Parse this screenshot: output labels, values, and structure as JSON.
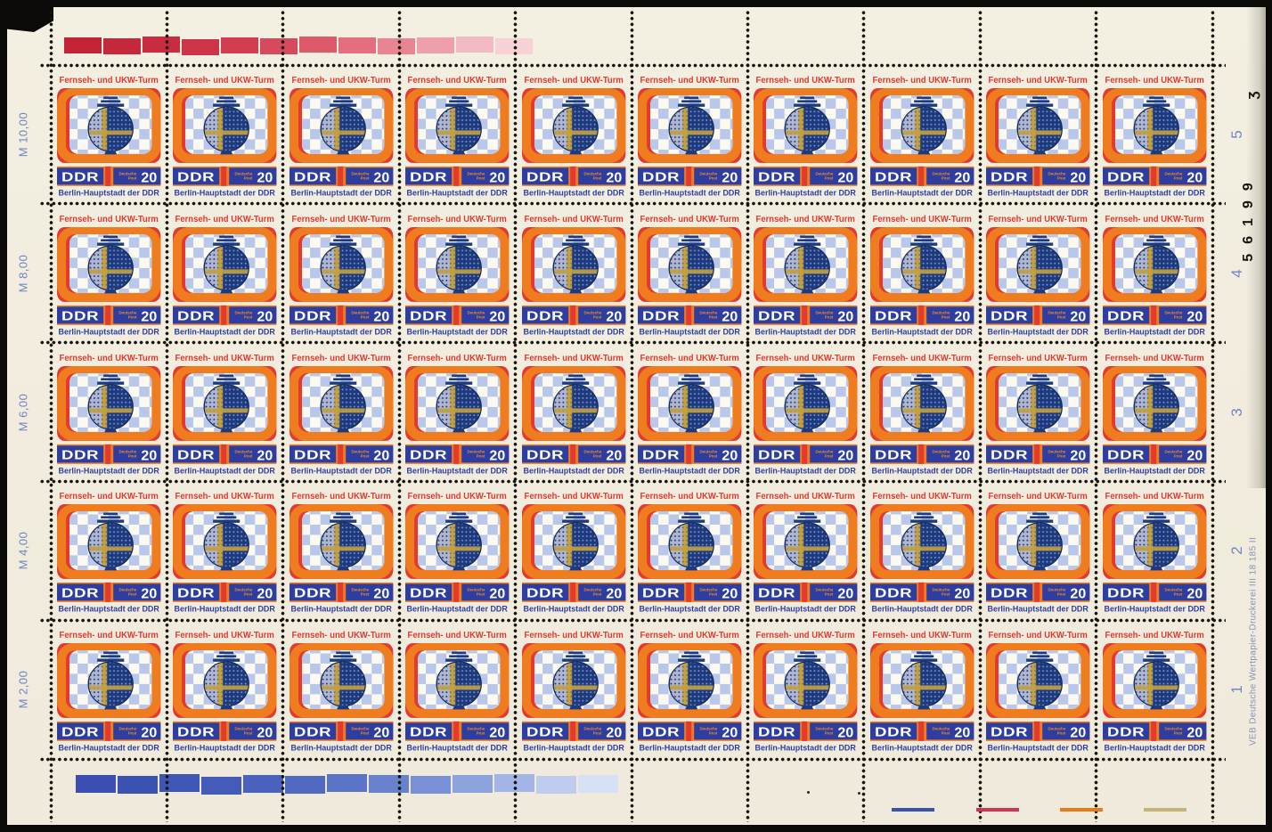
{
  "sheet": {
    "stamp": {
      "title": "Fernseh- und UKW-Turm",
      "country": "DDR",
      "post_line1": "Deutsche",
      "post_line2": "Post",
      "denomination": "20",
      "caption": "Berlin-Hauptstadt der DDR",
      "rows": 5,
      "columns": 10,
      "total": 50,
      "colors": {
        "frame_orange": "#ef7d1f",
        "frame_red": "#e23b2e",
        "panel_blue": "#2e3ea0",
        "checker_blue": "#b9c7ea",
        "sphere_navy": "#1d3a7e",
        "sphere_gold": "#c2a144",
        "sphere_light": "#aeb6d2",
        "screen_white": "#fcfaf0"
      }
    },
    "left_margin_labels": [
      "M 10,00",
      "M 8,00",
      "M 6,00",
      "M 4,00",
      "M 2,00"
    ],
    "right_margin_row_numbers": [
      "5",
      "4",
      "3",
      "2",
      "1"
    ],
    "serial_number": "56199",
    "serial_mark": "ʒ",
    "printer_imprint": "VEB Deutsche Wertpapier-Druckerei    III 18 185    II",
    "top_color_bar": {
      "colors": [
        "#c22337",
        "#c5273b",
        "#c92c41",
        "#cd3448",
        "#d23d51",
        "#d74a5d",
        "#dd5a6b",
        "#e36e7d",
        "#e88593",
        "#ed9fab",
        "#f2bac2",
        "#f6d2d7"
      ]
    },
    "bottom_color_bar": {
      "colors": [
        "#3a4fb1",
        "#3c52b3",
        "#4056b6",
        "#445bb9",
        "#4a62bd",
        "#516ac1",
        "#5b74c7",
        "#6881cd",
        "#7890d5",
        "#8ca3de",
        "#a3b5e6",
        "#bfcbef",
        "#d8e0f6"
      ]
    },
    "color_check_lines": [
      {
        "name": "blue",
        "color": "#3952ae"
      },
      {
        "name": "red",
        "color": "#cf3550"
      },
      {
        "name": "orange",
        "color": "#e77c17"
      },
      {
        "name": "tan",
        "color": "#c4b478"
      }
    ]
  }
}
